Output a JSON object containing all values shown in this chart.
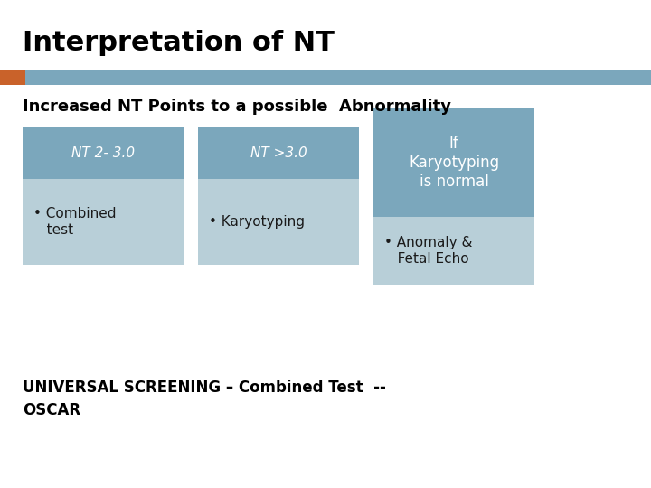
{
  "title": "Interpretation of NT",
  "subtitle": "Increased NT Points to a possible  Abnormality",
  "title_fontsize": 22,
  "subtitle_fontsize": 13,
  "background_color": "#ffffff",
  "header_bar_color": "#7ba7bc",
  "header_accent_color": "#c9622a",
  "box1_header_color": "#7ba7bc",
  "box1_body_color": "#b8cfd8",
  "box2_header_color": "#7ba7bc",
  "box2_body_color": "#b8cfd8",
  "box3_header_color": "#7ba7bc",
  "box3_body_color": "#b8cfd8",
  "box1_title": "NT 2- 3.0",
  "box1_bullet": "• Combined\n   test",
  "box2_title": "NT >3.0",
  "box2_bullet": "• Karyotyping",
  "box3_title": "If\nKaryotyping\nis normal",
  "box3_bullet": "• Anomaly &\n   Fetal Echo",
  "bottom_text": "UNIVERSAL SCREENING – Combined Test  --\nOSCAR",
  "text_color_white": "#ffffff",
  "text_color_dark": "#1a1a1a",
  "text_color_bold": "#000000"
}
